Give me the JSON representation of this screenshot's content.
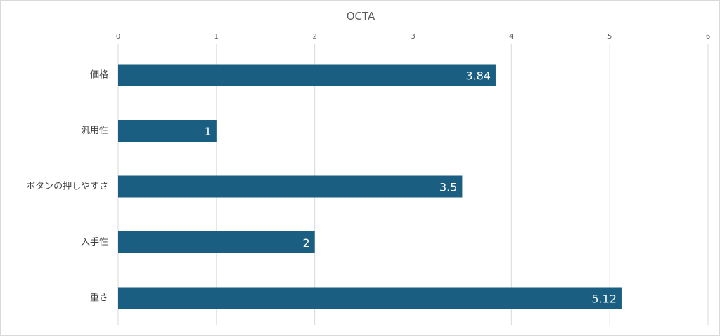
{
  "chart_data": {
    "type": "bar",
    "orientation": "horizontal",
    "title": "OCTA",
    "categories": [
      "価格",
      "汎用性",
      "ボタンの押しやすさ",
      "入手性",
      "重さ"
    ],
    "values": [
      3.84,
      1,
      3.5,
      2,
      5.12
    ],
    "x_ticks": [
      "0",
      "1",
      "2",
      "3",
      "4",
      "5",
      "6"
    ],
    "xlim": [
      0,
      6
    ],
    "x_axis_position": "top",
    "grid": true,
    "legend": "none",
    "bar_color": "#1a5f82",
    "data_labels": true
  }
}
